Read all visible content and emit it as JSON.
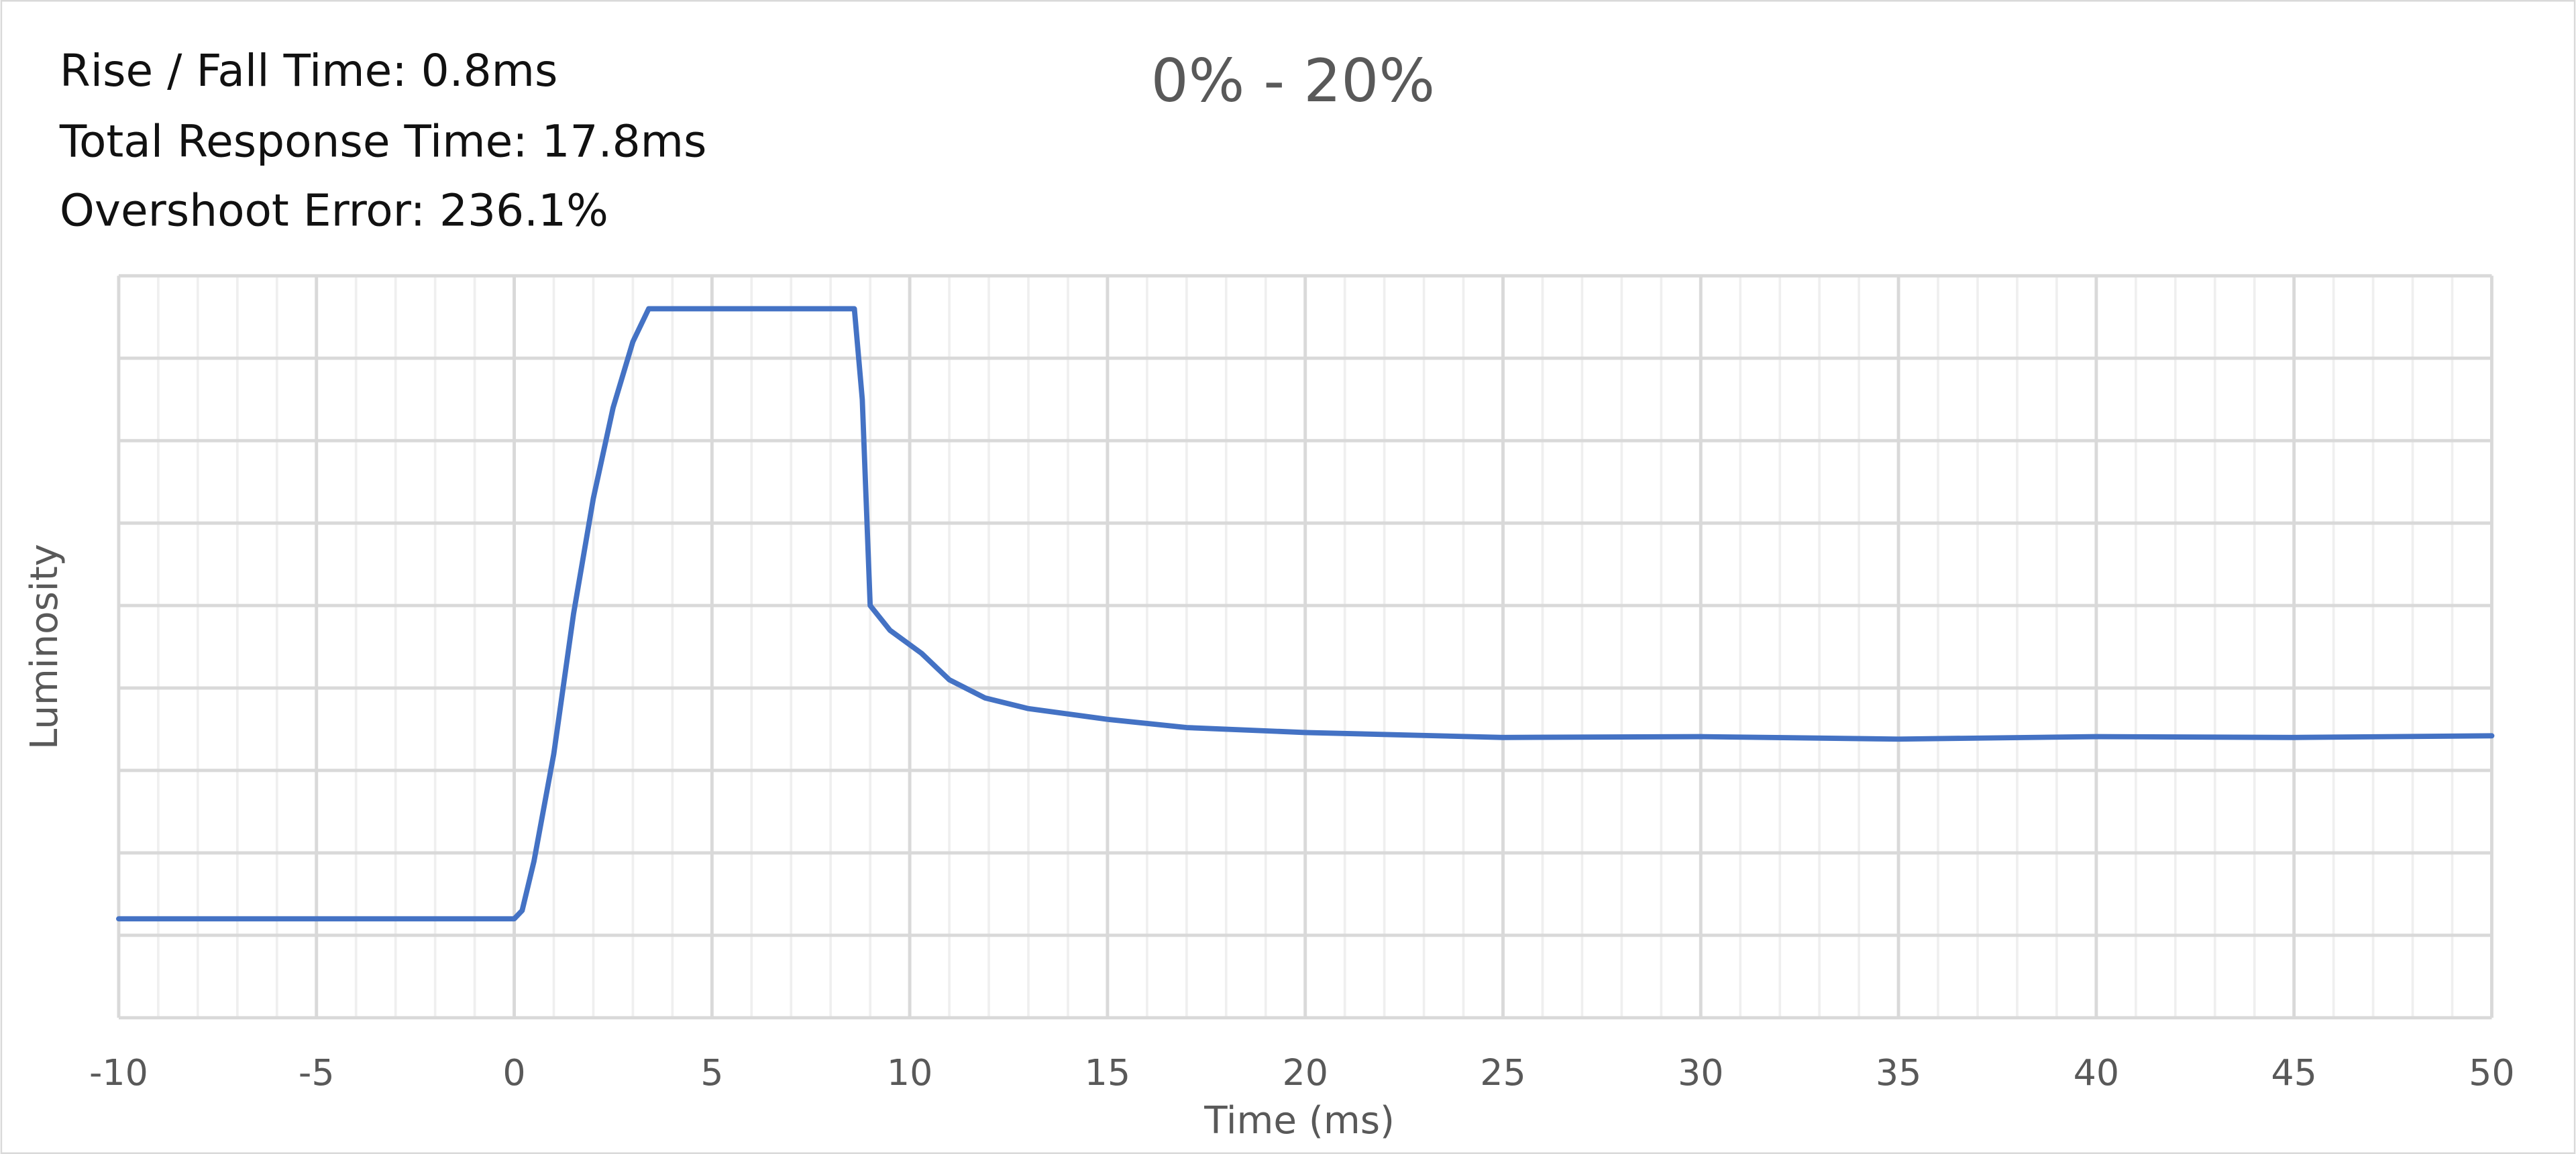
{
  "chart_data": {
    "type": "line",
    "title": "0% - 20%",
    "annotations": [
      "Rise / Fall Time: 0.8ms",
      "Total Response Time: 17.8ms",
      "Overshoot Error: 236.1%"
    ],
    "x_label": "Time (ms)",
    "y_label": "Luminosity",
    "x": [
      -10,
      0,
      0.2,
      0.5,
      1.0,
      1.5,
      2.0,
      2.5,
      3.0,
      3.4,
      8.6,
      8.8,
      9.0,
      9.5,
      10.3,
      11.0,
      11.9,
      13.0,
      15.0,
      17.0,
      20.0,
      25.0,
      30.0,
      35.0,
      40.0,
      45.0,
      50.0
    ],
    "values": [
      1.2,
      1.2,
      1.3,
      1.9,
      3.2,
      4.9,
      6.3,
      7.4,
      8.2,
      8.6,
      8.6,
      7.5,
      5.0,
      4.7,
      4.42,
      4.1,
      3.88,
      3.75,
      3.62,
      3.52,
      3.46,
      3.4,
      3.41,
      3.38,
      3.41,
      3.4,
      3.42
    ],
    "color": "#4472c4",
    "xlim": [
      -10,
      50
    ],
    "xticks": [
      -10,
      -5,
      0,
      5,
      10,
      15,
      20,
      25,
      30,
      35,
      40,
      45,
      50
    ],
    "ylim": [
      0,
      9
    ],
    "ygridlines": [
      0,
      1,
      2,
      3,
      4,
      5,
      6,
      7,
      8,
      9
    ],
    "grid": true
  }
}
